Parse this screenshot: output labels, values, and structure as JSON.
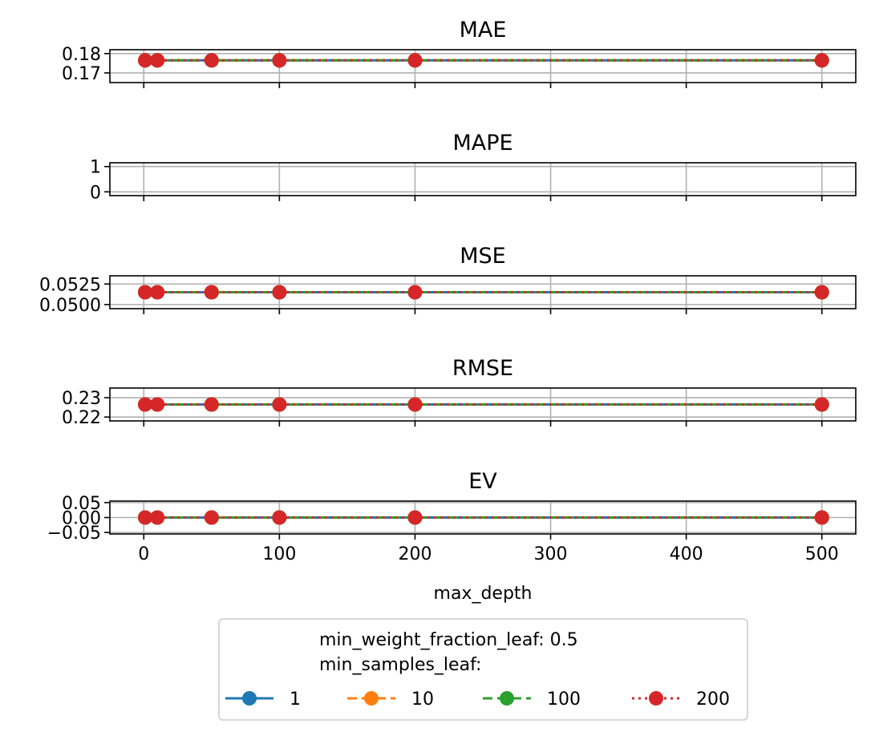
{
  "chart_data": {
    "type": "line",
    "layout": "5 stacked subplots sharing x axis",
    "xlabel": "max_depth",
    "x": [
      1,
      10,
      50,
      100,
      200,
      500
    ],
    "xlim": [
      -25,
      525
    ],
    "xticks": [
      0,
      100,
      200,
      300,
      400,
      500
    ],
    "xtick_labels": [
      "0",
      "100",
      "200",
      "300",
      "400",
      "500"
    ],
    "grid": true,
    "subplots": [
      {
        "title": "MAE",
        "ylim": [
          0.165,
          0.182
        ],
        "yticks": [
          0.17,
          0.18
        ],
        "ytick_labels": [
          "0.17",
          "0.18"
        ],
        "series_values": [
          [
            0.1765,
            0.1765,
            0.1765,
            0.1765,
            0.1765,
            0.1765
          ],
          [
            0.1765,
            0.1765,
            0.1765,
            0.1765,
            0.1765,
            0.1765
          ],
          [
            0.1765,
            0.1765,
            0.1765,
            0.1765,
            0.1765,
            0.1765
          ],
          [
            0.1765,
            0.1765,
            0.1765,
            0.1765,
            0.1765,
            0.1765
          ]
        ]
      },
      {
        "title": "MAPE",
        "ylim": [
          -0.15,
          1.15
        ],
        "yticks": [
          0,
          1
        ],
        "ytick_labels": [
          "0",
          "1"
        ],
        "series_values": [
          [],
          [],
          [],
          []
        ]
      },
      {
        "title": "MSE",
        "ylim": [
          0.0495,
          0.0535
        ],
        "yticks": [
          0.05,
          0.0525
        ],
        "ytick_labels": [
          "0.0500",
          "0.0525"
        ],
        "series_values": [
          [
            0.0515,
            0.0515,
            0.0515,
            0.0515,
            0.0515,
            0.0515
          ],
          [
            0.0515,
            0.0515,
            0.0515,
            0.0515,
            0.0515,
            0.0515
          ],
          [
            0.0515,
            0.0515,
            0.0515,
            0.0515,
            0.0515,
            0.0515
          ],
          [
            0.0515,
            0.0515,
            0.0515,
            0.0515,
            0.0515,
            0.0515
          ]
        ]
      },
      {
        "title": "RMSE",
        "ylim": [
          0.218,
          0.235
        ],
        "yticks": [
          0.22,
          0.23
        ],
        "ytick_labels": [
          "0.22",
          "0.23"
        ],
        "series_values": [
          [
            0.2265,
            0.2265,
            0.2265,
            0.2265,
            0.2265,
            0.2265
          ],
          [
            0.2265,
            0.2265,
            0.2265,
            0.2265,
            0.2265,
            0.2265
          ],
          [
            0.2265,
            0.2265,
            0.2265,
            0.2265,
            0.2265,
            0.2265
          ],
          [
            0.2265,
            0.2265,
            0.2265,
            0.2265,
            0.2265,
            0.2265
          ]
        ]
      },
      {
        "title": "EV",
        "ylim": [
          -0.055,
          0.055
        ],
        "yticks": [
          -0.05,
          0,
          0.05
        ],
        "ytick_labels": [
          "−0.05",
          "0.00",
          "0.05"
        ],
        "series_values": [
          [
            0,
            0,
            0,
            0,
            0,
            0
          ],
          [
            0,
            0,
            0,
            0,
            0,
            0
          ],
          [
            0,
            0,
            0,
            0,
            0,
            0
          ],
          [
            0,
            0,
            0,
            0,
            0,
            0
          ]
        ]
      }
    ],
    "series": [
      {
        "name": "1",
        "color": "#1f77b4",
        "linestyle": "solid"
      },
      {
        "name": "10",
        "color": "#ff7f0e",
        "linestyle": "dashed"
      },
      {
        "name": "100",
        "color": "#2ca02c",
        "linestyle": "dashed"
      },
      {
        "name": "200",
        "color": "#d62728",
        "linestyle": "dotted"
      }
    ],
    "legend": {
      "placement": "bottom-center",
      "title_lines": [
        "min_weight_fraction_leaf: 0.5",
        "min_samples_leaf:"
      ]
    }
  }
}
